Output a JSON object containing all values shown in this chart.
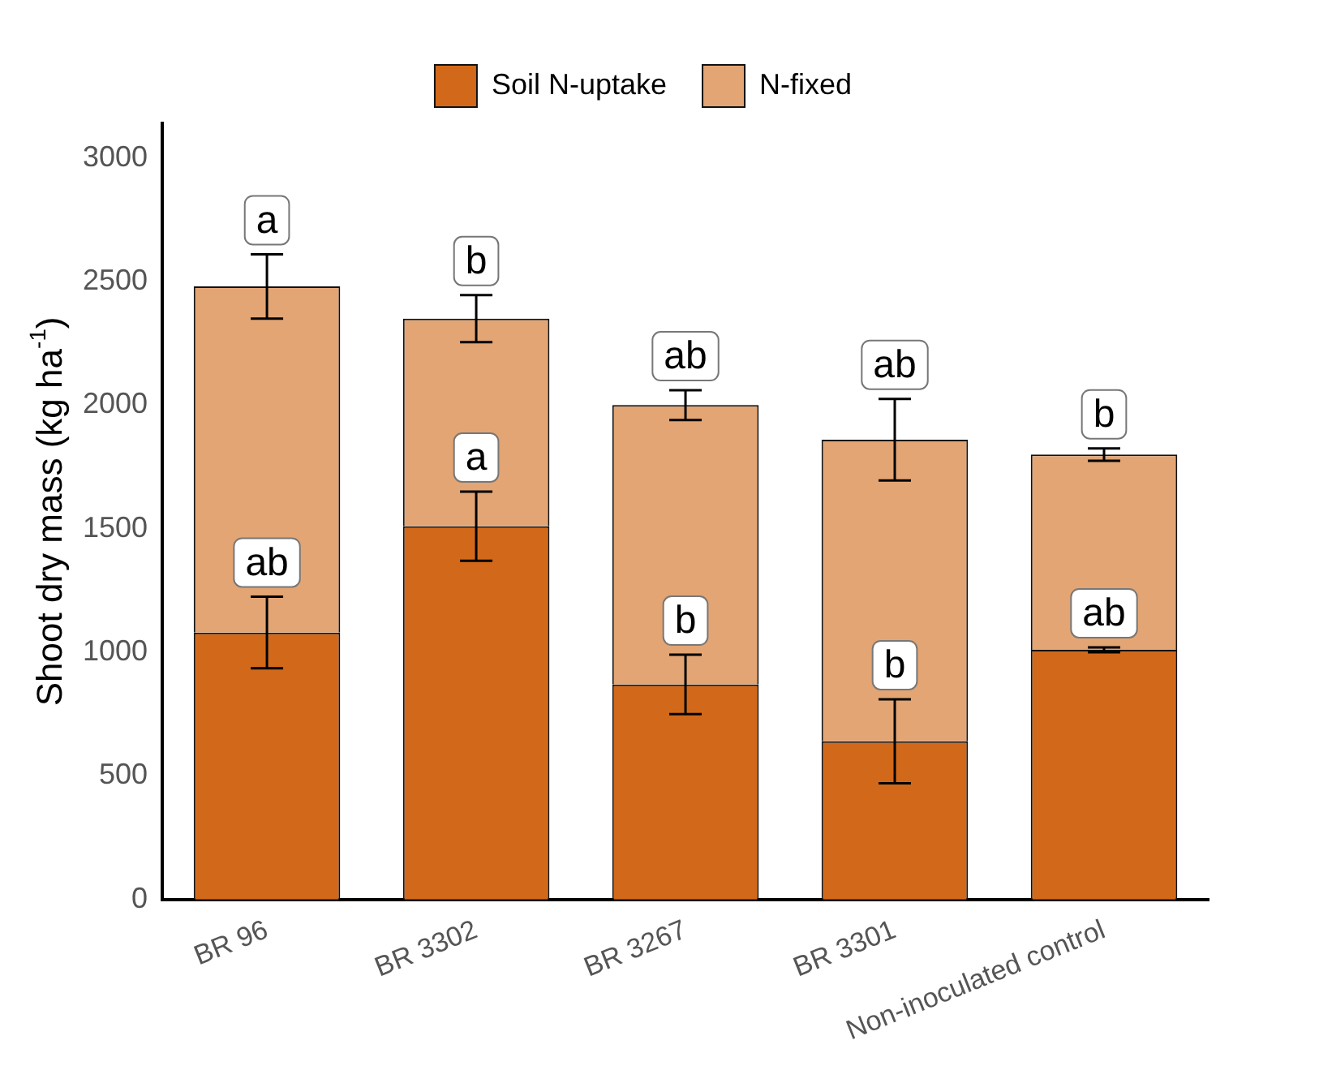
{
  "chart_data": {
    "type": "bar",
    "stacked": true,
    "ylabel": "Shoot dry mass (kg ha$^{-1}$)",
    "categories": [
      "BR 96",
      "BR 3302",
      "BR 3267",
      "BR 3301",
      "Non-inoculated control"
    ],
    "series": [
      {
        "name": "Soil N-uptake",
        "color": "#d2691a",
        "values": [
          1080,
          1510,
          870,
          640,
          1010
        ],
        "errors": [
          145,
          140,
          120,
          170,
          10
        ]
      },
      {
        "name": "N-fixed",
        "color": "#e3a574",
        "values": [
          1400,
          840,
          1130,
          1220,
          790
        ],
        "errors": [
          130,
          95,
          60,
          165,
          25
        ]
      }
    ],
    "ylim": [
      0,
      3140
    ],
    "yticks": [
      0,
      500,
      1000,
      1500,
      2000,
      2500,
      3000
    ],
    "grid": false,
    "legend": "top",
    "annotations": [
      {
        "text": "a",
        "x": "BR 96",
        "y": 2480
      },
      {
        "text": "ab",
        "x": "BR 96",
        "y": 1080
      },
      {
        "text": "b",
        "x": "BR 3302",
        "y": 2350
      },
      {
        "text": "a",
        "x": "BR 3302",
        "y": 1510
      },
      {
        "text": "ab",
        "x": "BR 3267",
        "y": 2000
      },
      {
        "text": "b",
        "x": "BR 3267",
        "y": 870
      },
      {
        "text": "ab",
        "x": "BR 3301",
        "y": 1860
      },
      {
        "text": "b",
        "x": "BR 3301",
        "y": 640
      },
      {
        "text": "b",
        "x": "Non-inoculated control",
        "y": 1800
      },
      {
        "text": "ab",
        "x": "Non-inoculated control",
        "y": 1010
      }
    ]
  }
}
